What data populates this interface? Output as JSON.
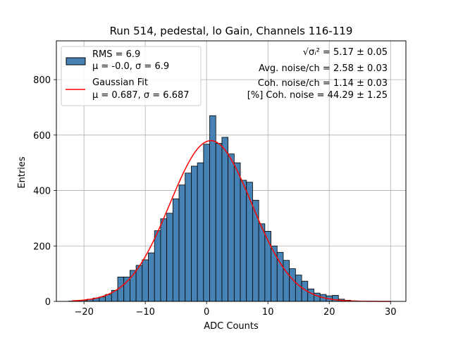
{
  "chart_data": {
    "type": "bar",
    "title": "Run 514, pedestal, lo Gain, Channels 116-119",
    "xlabel": "ADC Counts",
    "ylabel": "Entries",
    "xlim": [
      -24.5,
      32.5
    ],
    "ylim": [
      0,
      940
    ],
    "xticks": [
      -20,
      -10,
      0,
      10,
      20,
      30
    ],
    "yticks": [
      0,
      200,
      400,
      600,
      800
    ],
    "grid": true,
    "colors": {
      "bars": "#4682b4",
      "bar_edge": "#000000",
      "fit": "#ff0000"
    },
    "bin_width": 1,
    "bins": [
      [
        -22,
        1
      ],
      [
        -21,
        2
      ],
      [
        -20,
        4
      ],
      [
        -19,
        8
      ],
      [
        -18,
        12
      ],
      [
        -17,
        16
      ],
      [
        -16,
        25
      ],
      [
        -15,
        40
      ],
      [
        -14,
        88
      ],
      [
        -13,
        88
      ],
      [
        -12,
        112
      ],
      [
        -11,
        130
      ],
      [
        -10,
        150
      ],
      [
        -9,
        175
      ],
      [
        -8,
        255
      ],
      [
        -7,
        298
      ],
      [
        -6,
        318
      ],
      [
        -5,
        370
      ],
      [
        -4,
        420
      ],
      [
        -3,
        463
      ],
      [
        -2,
        488
      ],
      [
        -1,
        500
      ],
      [
        0,
        567
      ],
      [
        1,
        670
      ],
      [
        2,
        570
      ],
      [
        3,
        592
      ],
      [
        4,
        532
      ],
      [
        5,
        500
      ],
      [
        6,
        437
      ],
      [
        7,
        430
      ],
      [
        8,
        365
      ],
      [
        9,
        280
      ],
      [
        10,
        253
      ],
      [
        11,
        200
      ],
      [
        12,
        177
      ],
      [
        13,
        148
      ],
      [
        14,
        118
      ],
      [
        15,
        95
      ],
      [
        16,
        73
      ],
      [
        17,
        45
      ],
      [
        18,
        30
      ],
      [
        19,
        25
      ],
      [
        20,
        20
      ],
      [
        21,
        22
      ],
      [
        22,
        8
      ],
      [
        23,
        4
      ],
      [
        24,
        2
      ]
    ],
    "fit": {
      "mu": 0.687,
      "sigma": 6.687,
      "amplitude": 580,
      "x_range": [
        -22,
        30
      ]
    },
    "legend": {
      "position": "upper-left",
      "entries": [
        {
          "kind": "hist",
          "lines": [
            "RMS = 6.9",
            "μ = -0.0, σ = 6.9"
          ]
        },
        {
          "kind": "line",
          "lines": [
            "Gaussian Fit",
            "μ = 0.687, σ = 6.687"
          ]
        }
      ]
    },
    "annotations": [
      {
        "prefix": "√σᵢ²",
        "value": " = 5.17 ± 0.05"
      },
      {
        "prefix": "",
        "value": "Avg. noise/ch = 2.58 ± 0.03"
      },
      {
        "prefix": "",
        "value": "Coh. noise/ch = 1.14 ± 0.03"
      },
      {
        "prefix": "",
        "value": "[%] Coh. noise = 44.29 ± 1.25"
      }
    ]
  }
}
